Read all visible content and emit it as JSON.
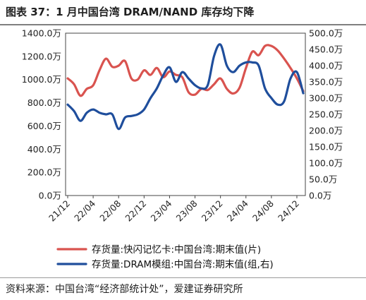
{
  "header": {
    "title": "图表 37：1 月中国台湾 DRAM/NAND 库存均下降"
  },
  "footer": {
    "source": "资料来源：中国台湾“经济部统计处”，爱建证券研究所"
  },
  "chart_data": {
    "type": "line",
    "y_left": {
      "ticks": [
        "1400.0万",
        "1200.0万",
        "1000.0万",
        "800.0万",
        "600.0万",
        "400.0万",
        "200.0万",
        "0.0万"
      ],
      "ylim": [
        0,
        1400
      ]
    },
    "y_right": {
      "ticks": [
        "500.0万",
        "450.0万",
        "400.0万",
        "350.0万",
        "300.0万",
        "250.0万",
        "200.0万",
        "150.0万",
        "100.0万",
        "50.0万",
        "0.0万"
      ],
      "ylim": [
        0,
        500
      ]
    },
    "x_ticks": [
      "21/12",
      "22/04",
      "22/08",
      "22/12",
      "23/04",
      "23/08",
      "23/12",
      "24/04",
      "24/08",
      "24/12"
    ],
    "x": [
      "21/12",
      "22/01",
      "22/02",
      "22/03",
      "22/04",
      "22/05",
      "22/06",
      "22/07",
      "22/08",
      "22/09",
      "22/10",
      "22/11",
      "22/12",
      "23/01",
      "23/02",
      "23/03",
      "23/04",
      "23/05",
      "23/06",
      "23/07",
      "23/08",
      "23/09",
      "23/10",
      "23/11",
      "23/12",
      "24/01",
      "24/02",
      "24/03",
      "24/04",
      "24/05",
      "24/06",
      "24/07",
      "24/08",
      "24/09",
      "24/10",
      "24/11",
      "24/12",
      "25/01"
    ],
    "series": [
      {
        "name": "存货量:快闪记忆卡:中国台湾:期末值(片)",
        "axis": "left",
        "color": "#d9534f",
        "values": [
          1010,
          960,
          860,
          920,
          950,
          1080,
          1180,
          1110,
          1120,
          1160,
          1010,
          1000,
          1080,
          1040,
          1100,
          1020,
          1070,
          1040,
          1020,
          890,
          870,
          920,
          910,
          960,
          1010,
          920,
          880,
          930,
          1100,
          1240,
          1210,
          1290,
          1290,
          1250,
          1180,
          1100,
          1010,
          900
        ]
      },
      {
        "name": "存货量:DRAM模组:中国台湾:期末值(组,右)",
        "axis": "right",
        "color": "#1f4e9c",
        "values": [
          280,
          260,
          230,
          255,
          265,
          255,
          250,
          250,
          205,
          240,
          245,
          250,
          265,
          300,
          330,
          370,
          395,
          350,
          380,
          360,
          340,
          330,
          340,
          430,
          465,
          400,
          380,
          400,
          410,
          410,
          400,
          330,
          300,
          280,
          290,
          360,
          380,
          315
        ]
      }
    ],
    "grid": false,
    "legend": "bottom"
  }
}
